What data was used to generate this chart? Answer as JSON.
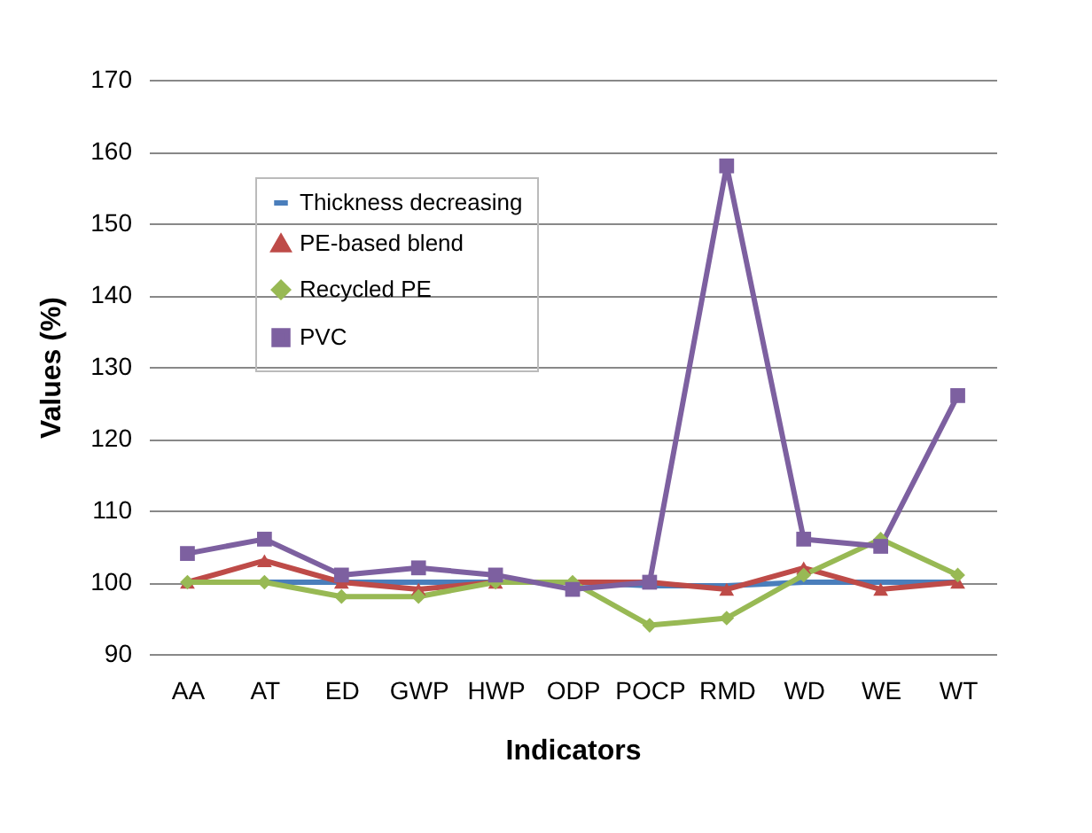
{
  "chart_data": {
    "type": "line",
    "xlabel": "Indicators",
    "ylabel": "Values (%)",
    "categories": [
      "AA",
      "AT",
      "ED",
      "GWP",
      "HWP",
      "ODP",
      "POCP",
      "RMD",
      "WD",
      "WE",
      "WT"
    ],
    "series": [
      {
        "name": "Thickness decreasing",
        "color": "#4a7ebb",
        "values": [
          100,
          100,
          100,
          100,
          100,
          100,
          99.5,
          99.5,
          100,
          100,
          100
        ]
      },
      {
        "name": "PE-based blend",
        "color": "#be4b48",
        "marker": "triangle",
        "values": [
          100,
          103,
          100,
          99,
          100,
          100,
          100,
          99,
          102,
          99,
          100
        ]
      },
      {
        "name": "Recycled PE",
        "color": "#98b954",
        "marker": "diamond",
        "values": [
          100,
          100,
          98,
          98,
          100,
          100,
          94,
          95,
          101,
          106,
          101
        ]
      },
      {
        "name": "PVC",
        "color": "#7d60a0",
        "marker": "square",
        "values": [
          104,
          106,
          101,
          102,
          101,
          99,
          100,
          158,
          106,
          105,
          126
        ]
      }
    ],
    "ylim": [
      90,
      170
    ],
    "yticks": [
      90,
      100,
      110,
      120,
      130,
      140,
      150,
      160,
      170
    ],
    "grid": "y",
    "legend": "top left",
    "line_style": "solid"
  }
}
